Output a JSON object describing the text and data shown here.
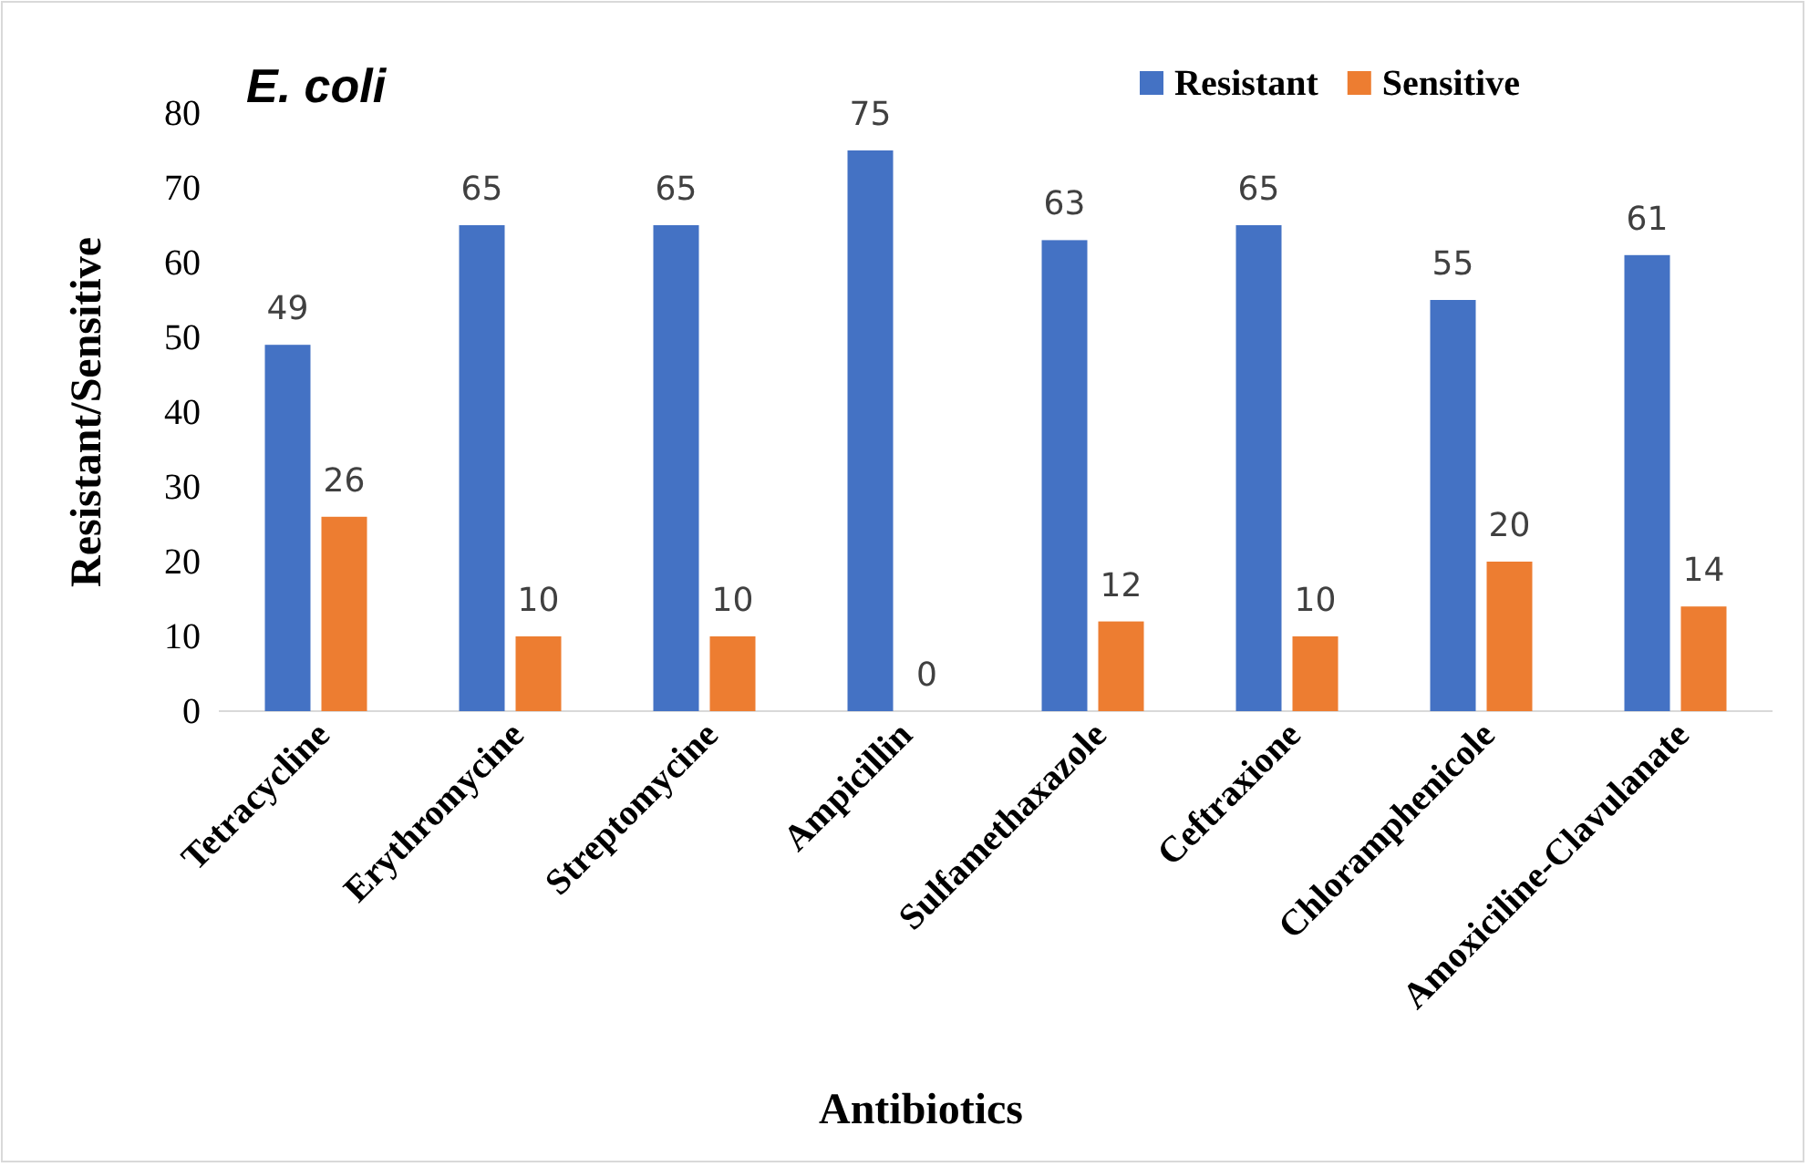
{
  "chart_data": {
    "type": "bar",
    "title": "E. coli",
    "xlabel": "Antibiotics",
    "ylabel": "Resistant/Sensitive",
    "categories": [
      "Tetracycline",
      "Erythromycine",
      "Streptomycine",
      "Ampicillin",
      "Sulfamethaxazole",
      "Ceftraxione",
      "Chloramphenicole",
      "Amoxiciline-Clavulanate"
    ],
    "series": [
      {
        "name": "Resistant",
        "color": "#4472c4",
        "values": [
          49,
          65,
          65,
          75,
          63,
          65,
          55,
          61
        ]
      },
      {
        "name": "Sensitive",
        "color": "#ed7d31",
        "values": [
          26,
          10,
          10,
          0,
          12,
          10,
          20,
          14
        ]
      }
    ],
    "ylim": [
      0,
      80
    ],
    "yticks": [
      0,
      10,
      20,
      30,
      40,
      50,
      60,
      70,
      80
    ],
    "grid": false,
    "legend": "top right",
    "data_labels": true
  }
}
